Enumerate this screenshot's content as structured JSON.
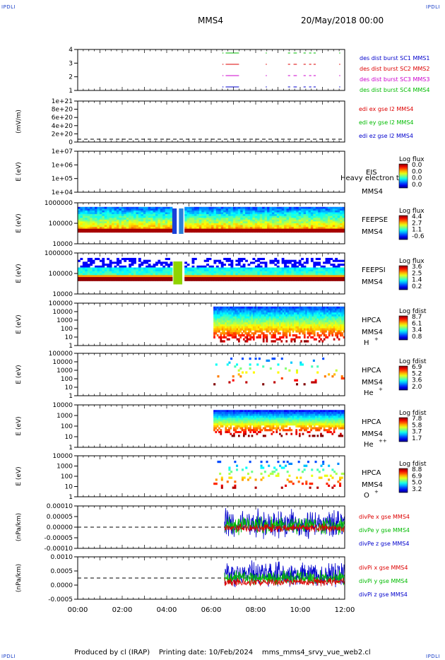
{
  "header": {
    "corner_label": "IPDLI",
    "title": "MMS4",
    "datetime": "20/May/2018 00:00"
  },
  "footer": {
    "produced_by": "Produced by cl (IRAP)",
    "printing_date": "Printing date: 10/Feb/2024",
    "script_name": "mms_mms4_srvy_vue_web2.cl"
  },
  "chart_data": [
    {
      "id": "des-dist-burst",
      "type": "timeline",
      "ylabel": "",
      "yticks": [
        "4",
        "3",
        "2",
        "1"
      ],
      "series": [
        {
          "name": "des dist burst SC1 MMS1",
          "color": "#0000cc",
          "level": 1
        },
        {
          "name": "des dist burst SC2 MMS2",
          "color": "#dd0000",
          "level": 3
        },
        {
          "name": "des dist burst SC3 MMS3",
          "color": "#cc00cc",
          "level": 2
        },
        {
          "name": "des dist burst SC4 MMS4",
          "color": "#00bb00",
          "level": 4
        }
      ],
      "intervals": [
        [
          6.5,
          6.55
        ],
        [
          6.65,
          7.25
        ],
        [
          8.45,
          8.5
        ],
        [
          9.45,
          9.55
        ],
        [
          9.7,
          9.85
        ],
        [
          10.15,
          10.25
        ],
        [
          10.4,
          10.5
        ],
        [
          10.6,
          10.7
        ],
        [
          11.75,
          11.8
        ]
      ]
    },
    {
      "id": "edi-e-gse",
      "type": "line",
      "ylabel": "(mV/m)",
      "yticks": [
        "1e+21",
        "8e+20",
        "6e+20",
        "4e+20",
        "2e+20",
        "0"
      ],
      "series": [
        {
          "name": "edi ex gse l2 MMS4",
          "color": "#dd0000"
        },
        {
          "name": "edi ey gse l2 MMS4",
          "color": "#00bb00"
        },
        {
          "name": "edi ez gse l2 MMS4",
          "color": "#0000cc"
        }
      ]
    },
    {
      "id": "eis",
      "type": "heatmap",
      "ylabel": "E (eV)",
      "yticks": [
        "1e+07",
        "1e+06",
        "1e+05",
        "1e+04"
      ],
      "instrument": "EIS",
      "overlay": "Heavy electron to",
      "spacecraft": "MMS4",
      "colorbar": {
        "title": "Log flux",
        "ticks": [
          "0.0",
          "0.0",
          "0.0",
          "0.0"
        ]
      }
    },
    {
      "id": "feepse",
      "type": "heatmap",
      "ylabel": "E (eV)",
      "yticks": [
        "1000000",
        "100000",
        "10000"
      ],
      "instrument": "FEEPSE",
      "spacecraft": "MMS4",
      "colorbar": {
        "title": "Log flux",
        "ticks": [
          "4.4",
          "2.7",
          "1.1",
          "-0.6"
        ]
      }
    },
    {
      "id": "feepsi",
      "type": "heatmap",
      "ylabel": "E (eV)",
      "yticks": [
        "1000000",
        "100000",
        "10000"
      ],
      "instrument": "FEEPSI",
      "spacecraft": "MMS4",
      "colorbar": {
        "title": "Log flux",
        "ticks": [
          "3.6",
          "2.5",
          "1.4",
          "0.2"
        ]
      }
    },
    {
      "id": "hpca-h",
      "type": "heatmap",
      "ylabel": "E (eV)",
      "yticks": [
        "100000",
        "10000",
        "1000",
        "100",
        "10",
        "1"
      ],
      "instrument": "HPCA",
      "spacecraft": "MMS4",
      "species": "H",
      "charge": "+",
      "colorbar": {
        "title": "Log fdist",
        "ticks": [
          "8.7",
          "6.1",
          "3.4",
          "0.8"
        ]
      }
    },
    {
      "id": "hpca-he",
      "type": "heatmap",
      "ylabel": "E (eV)",
      "yticks": [
        "100000",
        "10000",
        "1000",
        "100",
        "10",
        "1"
      ],
      "instrument": "HPCA",
      "spacecraft": "MMS4",
      "species": "He",
      "charge": "+",
      "colorbar": {
        "title": "Log fdist",
        "ticks": [
          "6.9",
          "5.2",
          "3.6",
          "2.0"
        ]
      }
    },
    {
      "id": "hpca-hepp",
      "type": "heatmap",
      "ylabel": "E (eV)",
      "yticks": [
        "10000",
        "1000",
        "100",
        "10",
        "1"
      ],
      "instrument": "HPCA",
      "spacecraft": "MMS4",
      "species": "He",
      "charge": "++",
      "colorbar": {
        "title": "Log fdist",
        "ticks": [
          "7.8",
          "5.8",
          "3.7",
          "1.7"
        ]
      }
    },
    {
      "id": "hpca-o",
      "type": "heatmap",
      "ylabel": "E (eV)",
      "yticks": [
        "10000",
        "1000",
        "100",
        "10",
        "1"
      ],
      "instrument": "HPCA",
      "spacecraft": "MMS4",
      "species": "O",
      "charge": "+",
      "colorbar": {
        "title": "Log fdist",
        "ticks": [
          "8.8",
          "6.9",
          "5.0",
          "3.2"
        ]
      }
    },
    {
      "id": "divpe",
      "type": "line",
      "ylabel": "(nPa/km)",
      "yticks": [
        "0.00010",
        "0.00005",
        "0.00000",
        "-0.00005",
        "-0.00010"
      ],
      "series": [
        {
          "name": "divPe x gse MMS4",
          "color": "#dd0000"
        },
        {
          "name": "divPe y gse MMS4",
          "color": "#00bb00"
        },
        {
          "name": "divPe z gse MMS4",
          "color": "#0000cc"
        }
      ]
    },
    {
      "id": "divpi",
      "type": "line",
      "ylabel": "(nPa/km)",
      "yticks": [
        "0.0010",
        "0.0005",
        "0.0000",
        "-0.0005"
      ],
      "series": [
        {
          "name": "divPi x gse MMS4",
          "color": "#dd0000"
        },
        {
          "name": "divPi y gse MMS4",
          "color": "#00bb00"
        },
        {
          "name": "divPi z gse MMS4",
          "color": "#0000cc"
        }
      ]
    }
  ],
  "x_axis": {
    "ticks": [
      "00:00",
      "02:00",
      "04:00",
      "06:00",
      "08:00",
      "10:00",
      "12:00"
    ],
    "range_hours": [
      0,
      12
    ]
  }
}
